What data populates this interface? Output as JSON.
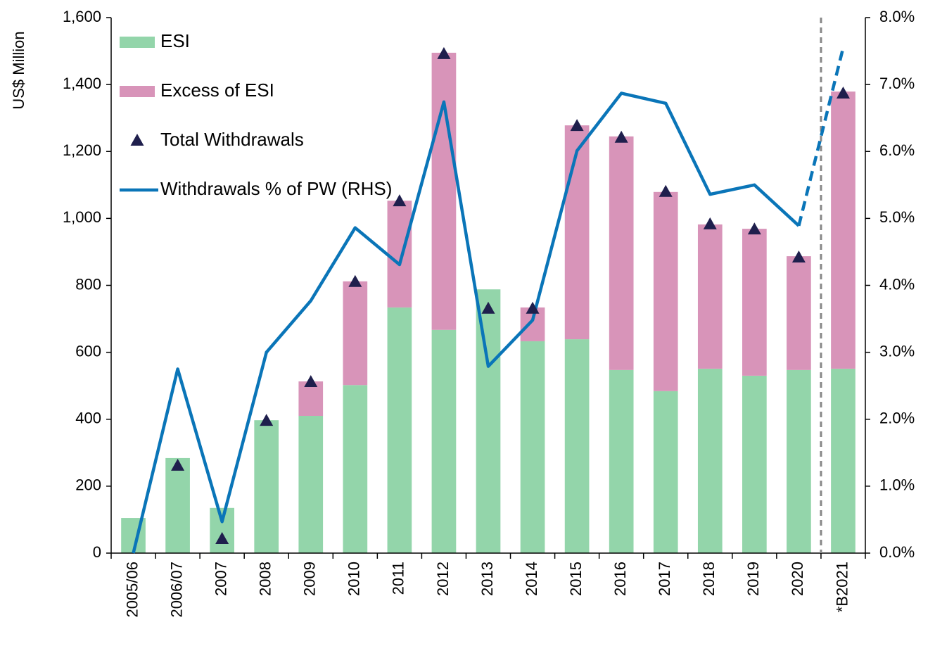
{
  "chart_data": {
    "type": "bar",
    "ylabel": "US$ Million",
    "categories": [
      "2005/06",
      "2006/07",
      "2007",
      "2008",
      "2009",
      "2010",
      "2011",
      "2012",
      "2013",
      "2014",
      "2015",
      "2016",
      "2017",
      "2018",
      "2019",
      "2020",
      "*B2021"
    ],
    "series": [
      {
        "name": "ESI",
        "type": "bar",
        "color": "#93d5aa",
        "values": [
          105,
          284,
          135,
          397,
          410,
          502,
          734,
          667,
          788,
          633,
          639,
          547,
          484,
          551,
          530,
          547,
          551
        ]
      },
      {
        "name": "Excess of ESI",
        "type": "bar",
        "color": "#d894b9",
        "values": [
          0,
          0,
          0,
          0,
          103,
          310,
          319,
          828,
          0,
          101,
          639,
          698,
          595,
          431,
          439,
          340,
          828
        ]
      },
      {
        "name": "Total Withdrawals",
        "type": "marker",
        "color": "#1f1f4d",
        "values": [
          null,
          261,
          42,
          395,
          511,
          810,
          1051,
          1491,
          730,
          730,
          1276,
          1241,
          1079,
          982,
          967,
          883,
          1373
        ]
      },
      {
        "name": "Withdrawals % of PW (RHS)",
        "type": "line",
        "axis": "y2",
        "color": "#0a75b8",
        "dash_from": 15,
        "values": [
          0.0,
          2.75,
          0.47,
          3.0,
          3.77,
          4.86,
          4.31,
          6.74,
          2.79,
          3.48,
          6.01,
          6.87,
          6.72,
          5.36,
          5.5,
          4.89,
          7.55
        ]
      }
    ],
    "stacked": true,
    "divider_before_index": 16,
    "ylim": [
      0,
      1600
    ],
    "yticks": [
      0,
      200,
      400,
      600,
      800,
      {
        "value": 1000,
        "label": "1,000"
      },
      {
        "value": 1200,
        "label": "1,200"
      },
      {
        "value": 1400,
        "label": "1,400"
      },
      {
        "value": 1600,
        "label": "1,600"
      }
    ],
    "y2lim": [
      0,
      8
    ],
    "y2ticks": [
      {
        "value": 0,
        "label": "0.0%"
      },
      {
        "value": 1,
        "label": "1.0%"
      },
      {
        "value": 2,
        "label": "2.0%"
      },
      {
        "value": 3,
        "label": "3.0%"
      },
      {
        "value": 4,
        "label": "4.0%"
      },
      {
        "value": 5,
        "label": "5.0%"
      },
      {
        "value": 6,
        "label": "6.0%"
      },
      {
        "value": 7,
        "label": "7.0%"
      },
      {
        "value": 8,
        "label": "8.0%"
      }
    ],
    "legend": "upper left",
    "grid": false
  }
}
